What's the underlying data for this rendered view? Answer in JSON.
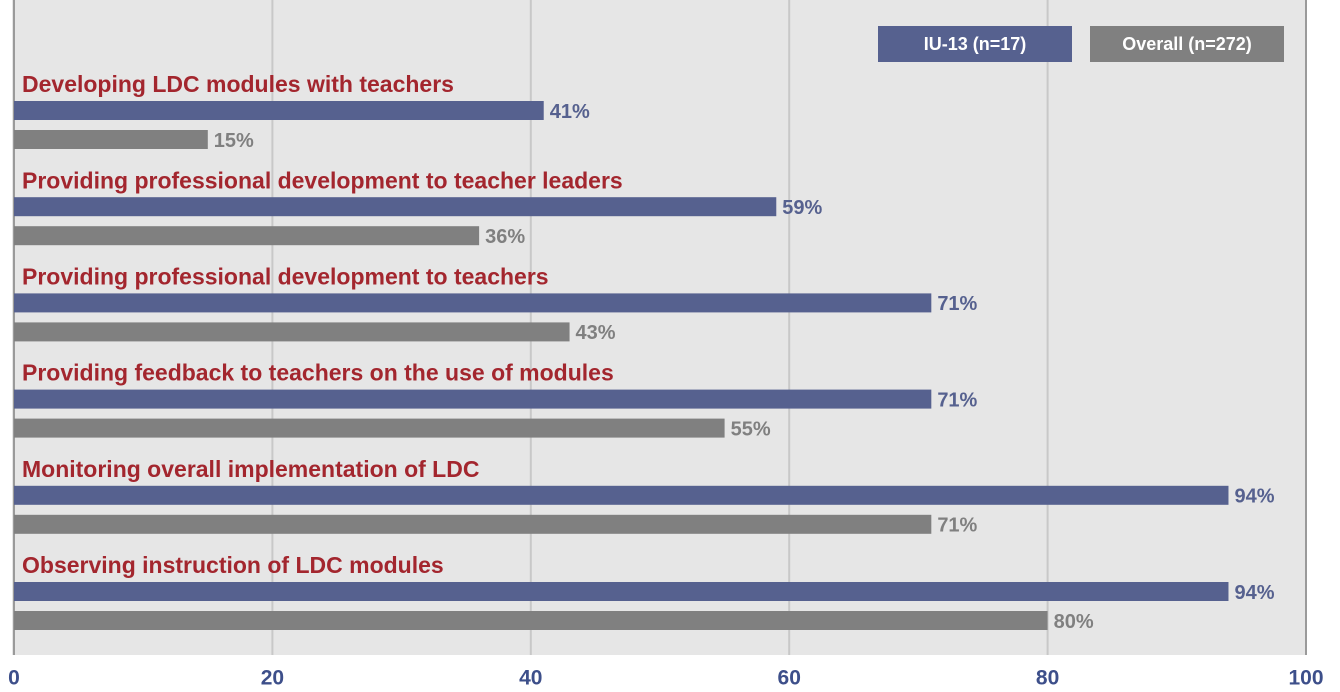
{
  "chart_data": {
    "type": "hbar",
    "categories": [
      "Developing LDC modules with teachers",
      "Providing professional development to teacher leaders",
      "Providing professional development to teachers",
      "Providing feedback to teachers on the use of modules",
      "Monitoring overall implementation of LDC",
      "Observing instruction of LDC modules"
    ],
    "series": [
      {
        "name": "IU-13 (n=17)",
        "color": "#56618f",
        "values": [
          41,
          59,
          71,
          71,
          94,
          94
        ],
        "value_labels": [
          "41%",
          "59%",
          "71%",
          "71%",
          "94%",
          "94%"
        ]
      },
      {
        "name": "Overall (n=272)",
        "color": "#808080",
        "values": [
          15,
          36,
          43,
          55,
          71,
          80
        ],
        "value_labels": [
          "15%",
          "36%",
          "43%",
          "55%",
          "71%",
          "80%"
        ]
      }
    ],
    "xlim": [
      0,
      100
    ],
    "xticks": [
      0,
      20,
      40,
      60,
      80,
      100
    ],
    "grid": true,
    "legend": "top-right",
    "category_color": "#a3262e",
    "tick_color": "#3d4f8a"
  }
}
